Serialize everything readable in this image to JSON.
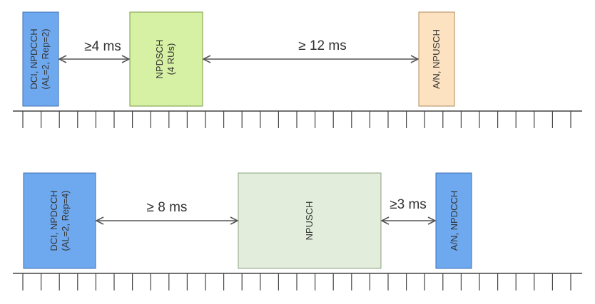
{
  "colors": {
    "dci_fill": "#6ea9f0",
    "dci_stroke": "#3d6fb5",
    "npdsch_fill": "#d6f0a4",
    "npdsch_stroke": "#7a9a44",
    "an_npusch_fill": "#fde2c2",
    "an_npusch_stroke": "#b08a5a",
    "npusch_fill": "#e2eedb",
    "npusch_stroke": "#8aa080",
    "an_npdcch_fill": "#6ea9f0",
    "an_npdcch_stroke": "#3d6fb5",
    "arrow": "#555555",
    "timeline": "#444444"
  },
  "downlink": {
    "dci": {
      "line1": "DCI, NPDCCH",
      "line2": "(AL=2, Rep=2)"
    },
    "gap1": "≥4 ms",
    "npdsch": {
      "line1": "NPDSCH",
      "line2": "(4 RUs)"
    },
    "gap2": "≥ 12 ms",
    "ack": {
      "line1": "A/N, NPUSCH"
    }
  },
  "uplink": {
    "dci": {
      "line1": "DCI, NPDCCH",
      "line2": "(AL=2, Rep=4)"
    },
    "gap1": "≥ 8 ms",
    "npusch": {
      "line1": "NPUSCH"
    },
    "gap2": "≥3 ms",
    "ack": {
      "line1": "A/N, NPDCCH"
    }
  }
}
